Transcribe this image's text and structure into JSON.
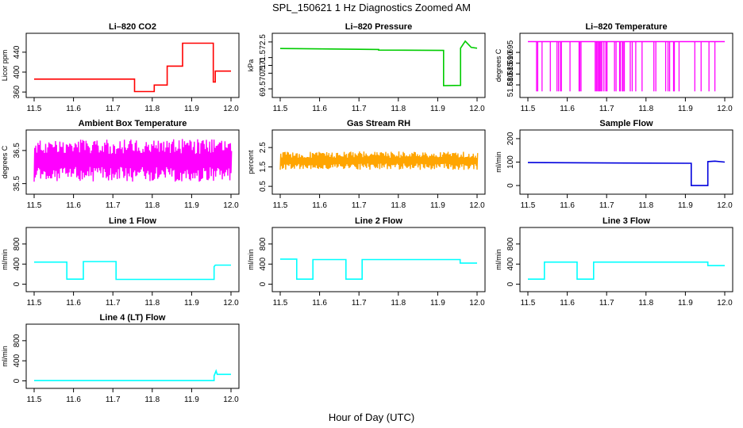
{
  "figure": {
    "title": "SPL_150621  1 Hz Diagnostics Zoomed AM",
    "xlabel": "Hour of Day (UTC)"
  },
  "chart_data": [
    {
      "type": "line",
      "title": "Li–820 CO2",
      "xlabel": "",
      "ylabel": "Licor ppm",
      "color": "#ff0000",
      "xlim": [
        11.5,
        12.0
      ],
      "ylim": [
        357,
        470
      ],
      "xticks": [
        "11.5",
        "11.6",
        "11.7",
        "11.8",
        "11.9",
        "12.0"
      ],
      "yticks": [
        360,
        400,
        440
      ],
      "ytick_labels": [
        "360",
        "400",
        "440"
      ],
      "series": [
        {
          "x": [
            11.5,
            11.755,
            11.755,
            11.805,
            11.805,
            11.838,
            11.838,
            11.877,
            11.877,
            11.955,
            11.955,
            11.96,
            11.96,
            12.0
          ],
          "y": [
            386,
            386,
            361,
            361,
            374,
            374,
            412,
            412,
            458,
            458,
            380,
            380,
            402,
            402
          ]
        }
      ]
    },
    {
      "type": "line",
      "title": "Li–820 Pressure",
      "xlabel": "",
      "ylabel": "kPa",
      "color": "#00cc00",
      "xlim": [
        11.5,
        12.0
      ],
      "ylim": [
        69.2,
        72.8
      ],
      "xticks": [
        "11.5",
        "11.6",
        "11.7",
        "11.8",
        "11.9",
        "12.0"
      ],
      "yticks": [
        69.5,
        70.5,
        71.0,
        71.5,
        72.5
      ],
      "ytick_labels": [
        "69.5",
        "70.5",
        "71.0",
        "71.5",
        "72.5"
      ],
      "series": [
        {
          "x": [
            11.5,
            11.75,
            11.75,
            11.915,
            11.915,
            11.958,
            11.958,
            11.97,
            11.985,
            12.0
          ],
          "y": [
            72.08,
            72.02,
            71.98,
            71.96,
            69.7,
            69.72,
            72.1,
            72.55,
            72.15,
            72.1
          ]
        }
      ]
    },
    {
      "type": "line",
      "title": "Li–820 Temperature",
      "xlabel": "",
      "ylabel": "degrees C",
      "color": "#ff00ff",
      "xlim": [
        11.5,
        12.0
      ],
      "ylim": [
        51.676,
        51.702
      ],
      "xticks": [
        "11.5",
        "11.6",
        "11.7",
        "11.8",
        "11.9",
        "12.0"
      ],
      "yticks": [
        51.68,
        51.685,
        51.69,
        51.695
      ],
      "ytick_labels": [
        "51.680",
        "51.685",
        "51.690",
        "51.695"
      ],
      "series": [
        {
          "x": [
            11.5,
            12.0
          ],
          "y": [
            51.7,
            51.7
          ]
        }
      ],
      "drops_x": [
        11.522,
        11.525,
        11.536,
        11.557,
        11.574,
        11.578,
        11.583,
        11.585,
        11.607,
        11.63,
        11.632,
        11.635,
        11.671,
        11.674,
        11.677,
        11.68,
        11.682,
        11.685,
        11.688,
        11.693,
        11.698,
        11.701,
        11.72,
        11.724,
        11.733,
        11.735,
        11.74,
        11.742,
        11.745,
        11.76,
        11.765,
        11.774,
        11.79,
        11.82,
        11.825,
        11.85,
        11.856,
        11.86,
        11.87,
        11.872,
        11.884,
        11.924,
        11.94,
        11.96,
        11.975
      ],
      "drop_min": 51.677
    },
    {
      "type": "line",
      "title": "Ambient Box Temperature",
      "xlabel": "",
      "ylabel": "degrees C",
      "color": "#ff00ff",
      "xlim": [
        11.5,
        12.0
      ],
      "ylim": [
        35.3,
        37.0
      ],
      "xticks": [
        "11.5",
        "11.6",
        "11.7",
        "11.8",
        "11.9",
        "12.0"
      ],
      "yticks": [
        35.5,
        36.5
      ],
      "ytick_labels": [
        "35.5",
        "36.5"
      ],
      "series": [
        {
          "x": [
            11.5,
            12.0
          ],
          "y": [
            35.95,
            35.95
          ]
        }
      ],
      "noise_range": [
        35.55,
        36.85
      ]
    },
    {
      "type": "line",
      "title": "Gas Stream RH",
      "xlabel": "",
      "ylabel": "percent",
      "color": "#ffa500",
      "xlim": [
        11.5,
        12.0
      ],
      "ylim": [
        0.3,
        3.2
      ],
      "xticks": [
        "11.5",
        "11.6",
        "11.7",
        "11.8",
        "11.9",
        "12.0"
      ],
      "yticks": [
        0.5,
        1.5,
        2.5
      ],
      "ytick_labels": [
        "0.5",
        "1.5",
        "2.5"
      ],
      "series": [
        {
          "x": [
            11.5,
            12.0
          ],
          "y": [
            1.95,
            1.95
          ]
        }
      ],
      "noise_range": [
        1.35,
        2.3
      ]
    },
    {
      "type": "line",
      "title": "Sample Flow",
      "xlabel": "",
      "ylabel": "ml/min",
      "color": "#0000dd",
      "xlim": [
        11.5,
        12.0
      ],
      "ylim": [
        -20,
        220
      ],
      "xticks": [
        "11.5",
        "11.6",
        "11.7",
        "11.8",
        "11.9",
        "12.0"
      ],
      "yticks": [
        0,
        100,
        200
      ],
      "ytick_labels": [
        "0",
        "100",
        "200"
      ],
      "series": [
        {
          "x": [
            11.5,
            11.75,
            11.915,
            11.915,
            11.957,
            11.957,
            11.975,
            12.0
          ],
          "y": [
            98,
            96,
            95,
            0,
            0,
            102,
            104,
            100
          ]
        }
      ]
    },
    {
      "type": "line",
      "title": "Line 1 Flow",
      "xlabel": "",
      "ylabel": "ml/min",
      "color": "#00ffff",
      "xlim": [
        11.5,
        12.0
      ],
      "ylim": [
        -70,
        1050
      ],
      "xticks": [
        "11.5",
        "11.6",
        "11.7",
        "11.8",
        "11.9",
        "12.0"
      ],
      "yticks": [
        0,
        400,
        800
      ],
      "ytick_labels": [
        "0",
        "400",
        "800"
      ],
      "series": [
        {
          "x": [
            11.5,
            11.583,
            11.583,
            11.625,
            11.625,
            11.708,
            11.708,
            11.957,
            11.957,
            11.96,
            12.0
          ],
          "y": [
            440,
            440,
            100,
            100,
            450,
            450,
            95,
            95,
            350,
            380,
            380
          ]
        }
      ]
    },
    {
      "type": "line",
      "title": "Line 2 Flow",
      "xlabel": "",
      "ylabel": "ml/min",
      "color": "#00ffff",
      "xlim": [
        11.5,
        12.0
      ],
      "ylim": [
        -70,
        1050
      ],
      "xticks": [
        "11.5",
        "11.6",
        "11.7",
        "11.8",
        "11.9",
        "12.0"
      ],
      "yticks": [
        0,
        400,
        800
      ],
      "ytick_labels": [
        "0",
        "400",
        "800"
      ],
      "series": [
        {
          "x": [
            11.5,
            11.542,
            11.542,
            11.583,
            11.583,
            11.667,
            11.667,
            11.708,
            11.708,
            11.957,
            11.957,
            12.0
          ],
          "y": [
            500,
            500,
            100,
            100,
            490,
            490,
            100,
            100,
            490,
            490,
            420,
            420
          ]
        }
      ]
    },
    {
      "type": "line",
      "title": "Line 3 Flow",
      "xlabel": "",
      "ylabel": "ml/min",
      "color": "#00ffff",
      "xlim": [
        11.5,
        12.0
      ],
      "ylim": [
        -70,
        1050
      ],
      "xticks": [
        "11.5",
        "11.6",
        "11.7",
        "11.8",
        "11.9",
        "12.0"
      ],
      "yticks": [
        0,
        400,
        800
      ],
      "ytick_labels": [
        "0",
        "400",
        "800"
      ],
      "series": [
        {
          "x": [
            11.5,
            11.542,
            11.542,
            11.625,
            11.625,
            11.667,
            11.667,
            11.957,
            11.957,
            12.0
          ],
          "y": [
            100,
            100,
            440,
            440,
            100,
            100,
            440,
            440,
            370,
            370
          ]
        }
      ]
    },
    {
      "type": "line",
      "title": "Line 4 (LT) Flow",
      "xlabel": "",
      "ylabel": "ml/min",
      "color": "#00ffff",
      "xlim": [
        11.5,
        12.0
      ],
      "ylim": [
        -70,
        1050
      ],
      "xticks": [
        "11.5",
        "11.6",
        "11.7",
        "11.8",
        "11.9",
        "12.0"
      ],
      "yticks": [
        0,
        400,
        800
      ],
      "ytick_labels": [
        "0",
        "400",
        "800"
      ],
      "series": [
        {
          "x": [
            11.5,
            11.957,
            11.957,
            11.962,
            11.965,
            12.0
          ],
          "y": [
            5,
            5,
            100,
            200,
            130,
            130
          ]
        }
      ]
    }
  ]
}
